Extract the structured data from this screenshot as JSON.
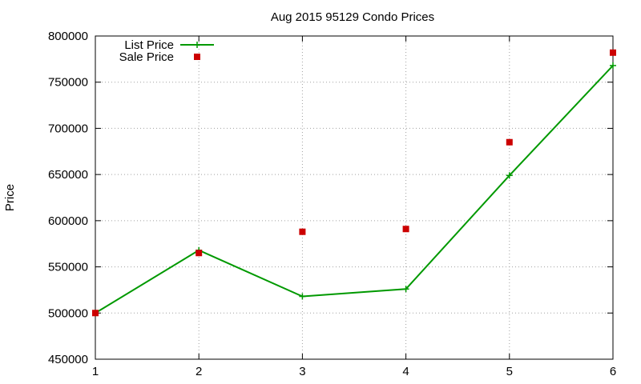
{
  "chart_data": {
    "type": "line",
    "title": "Aug 2015 95129 Condo Prices",
    "xlabel": "",
    "ylabel": "Price",
    "xlim": [
      1,
      6
    ],
    "ylim": [
      450000,
      800000
    ],
    "x_ticks": [
      1,
      2,
      3,
      4,
      5,
      6
    ],
    "y_ticks": [
      450000,
      500000,
      550000,
      600000,
      650000,
      700000,
      750000,
      800000
    ],
    "grid": true,
    "legend_position": "top-left",
    "series": [
      {
        "name": "List Price",
        "style": "line-with-plus-markers",
        "color": "#009900",
        "x": [
          1,
          2,
          3,
          4,
          5,
          6
        ],
        "y": [
          500000,
          568000,
          518000,
          526000,
          649000,
          768000
        ]
      },
      {
        "name": "Sale Price",
        "style": "square-points",
        "color": "#cc0000",
        "x": [
          1,
          2,
          3,
          4,
          5,
          6
        ],
        "y": [
          500000,
          565000,
          588000,
          591000,
          685000,
          782000
        ]
      }
    ]
  }
}
